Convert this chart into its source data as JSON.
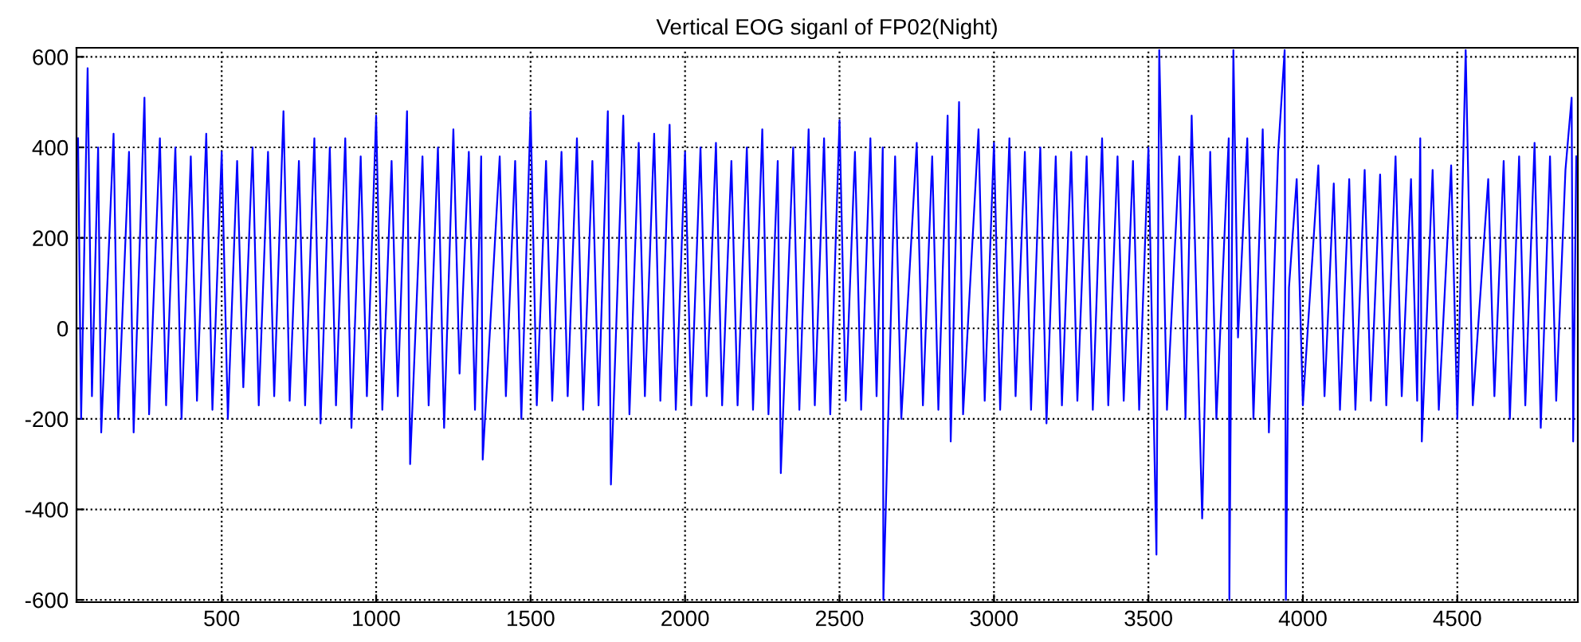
{
  "chart_data": {
    "type": "line",
    "title": "Vertical EOG siganl of FP02(Night)",
    "xlim": [
      30,
      4890
    ],
    "ylim": [
      -605,
      620
    ],
    "xticks": [
      500,
      1000,
      1500,
      2000,
      2500,
      3000,
      3500,
      4000,
      4500
    ],
    "yticks": [
      -600,
      -400,
      -200,
      0,
      200,
      400,
      600
    ],
    "grid": true,
    "marker": "none",
    "line_style": "solid",
    "series": [
      {
        "color": "#0000ff",
        "x": [
          35,
          45,
          66,
          80,
          100,
          110,
          150,
          165,
          200,
          215,
          250,
          265,
          300,
          320,
          350,
          370,
          400,
          420,
          450,
          470,
          500,
          520,
          550,
          570,
          600,
          620,
          650,
          670,
          700,
          720,
          750,
          770,
          800,
          820,
          850,
          870,
          900,
          920,
          950,
          970,
          1000,
          1020,
          1050,
          1070,
          1100,
          1110,
          1150,
          1170,
          1200,
          1220,
          1250,
          1270,
          1300,
          1320,
          1340,
          1345,
          1400,
          1420,
          1450,
          1470,
          1500,
          1520,
          1550,
          1570,
          1600,
          1620,
          1650,
          1670,
          1700,
          1720,
          1750,
          1760,
          1800,
          1820,
          1850,
          1870,
          1900,
          1920,
          1950,
          1970,
          2000,
          2020,
          2050,
          2070,
          2100,
          2120,
          2150,
          2170,
          2200,
          2220,
          2250,
          2270,
          2300,
          2310,
          2350,
          2370,
          2400,
          2420,
          2450,
          2470,
          2500,
          2520,
          2550,
          2570,
          2600,
          2620,
          2640,
          2642,
          2680,
          2700,
          2750,
          2770,
          2800,
          2820,
          2850,
          2860,
          2887,
          2900,
          2950,
          2970,
          3000,
          3020,
          3050,
          3070,
          3100,
          3120,
          3150,
          3170,
          3200,
          3220,
          3250,
          3270,
          3300,
          3320,
          3350,
          3370,
          3400,
          3420,
          3450,
          3470,
          3500,
          3526,
          3535,
          3560,
          3600,
          3620,
          3640,
          3674,
          3700,
          3720,
          3760,
          3762,
          3775,
          3790,
          3820,
          3840,
          3870,
          3890,
          3920,
          3941,
          3945,
          3955,
          3980,
          4000,
          4050,
          4070,
          4100,
          4120,
          4150,
          4170,
          4200,
          4220,
          4250,
          4270,
          4300,
          4320,
          4350,
          4370,
          4380,
          4385,
          4420,
          4440,
          4480,
          4500,
          4527,
          4550,
          4600,
          4620,
          4650,
          4670,
          4700,
          4720,
          4750,
          4770,
          4800,
          4820,
          4850,
          4870,
          4875,
          4885
        ],
        "values": [
          420,
          -200,
          575,
          -150,
          400,
          -230,
          430,
          -200,
          390,
          -230,
          510,
          -190,
          420,
          -170,
          400,
          -200,
          380,
          -160,
          430,
          -180,
          390,
          -200,
          370,
          -130,
          400,
          -170,
          390,
          -150,
          480,
          -160,
          370,
          -170,
          420,
          -210,
          400,
          -170,
          420,
          -220,
          380,
          -150,
          470,
          -180,
          370,
          -150,
          480,
          -300,
          380,
          -170,
          400,
          -220,
          440,
          -100,
          390,
          -180,
          380,
          -290,
          380,
          -150,
          370,
          -200,
          480,
          -170,
          370,
          -160,
          390,
          -150,
          420,
          -180,
          370,
          -170,
          480,
          -345,
          470,
          -190,
          410,
          -150,
          430,
          -160,
          450,
          -180,
          390,
          -170,
          400,
          -150,
          410,
          -170,
          370,
          -170,
          400,
          -180,
          440,
          -190,
          370,
          -320,
          400,
          -180,
          440,
          -170,
          420,
          -190,
          460,
          -160,
          390,
          -180,
          420,
          -150,
          400,
          -600,
          380,
          -200,
          410,
          -170,
          380,
          -180,
          470,
          -250,
          500,
          -190,
          440,
          -160,
          410,
          -180,
          420,
          -150,
          390,
          -180,
          400,
          -210,
          380,
          -170,
          390,
          -160,
          380,
          -180,
          420,
          -170,
          380,
          -160,
          370,
          -180,
          400,
          -500,
          615,
          -180,
          380,
          -200,
          470,
          -420,
          390,
          -200,
          420,
          -600,
          615,
          -20,
          420,
          -200,
          440,
          -230,
          390,
          615,
          -600,
          90,
          330,
          -170,
          360,
          -150,
          320,
          -180,
          330,
          -180,
          350,
          -160,
          340,
          -170,
          380,
          -150,
          330,
          -160,
          420,
          -250,
          350,
          -180,
          360,
          -200,
          615,
          -170,
          330,
          -150,
          370,
          -200,
          380,
          -170,
          410,
          -220,
          380,
          -160,
          350,
          510,
          -250,
          380
        ]
      }
    ]
  }
}
